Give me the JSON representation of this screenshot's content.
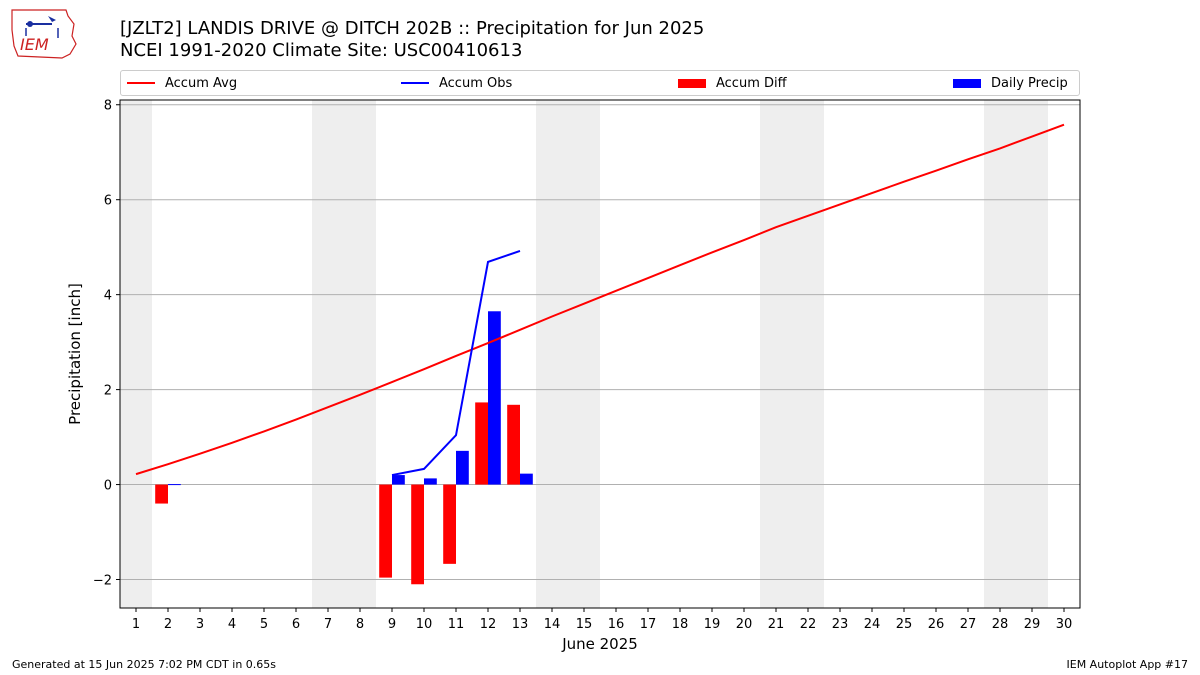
{
  "header": {
    "title_line1": "[JZLT2] LANDIS DRIVE @ DITCH 202B :: Precipitation for Jun 2025",
    "title_line2": "NCEI 1991-2020 Climate Site: USC00410613"
  },
  "logo": {
    "text": "IEM",
    "icon": "iowa-state-logo-icon"
  },
  "footer": {
    "left": "Generated at 15 Jun 2025 7:02 PM CDT in 0.65s",
    "right": "IEM Autoplot App #17"
  },
  "colors": {
    "accum_avg": "#ff0000",
    "accum_obs": "#0000ff",
    "accum_diff": "#ff0000",
    "daily_precip": "#0000ff",
    "weekend_shade": "#eeeeee",
    "grid": "#b0b0b0"
  },
  "chart_data": {
    "type": "bar",
    "xlabel": "June 2025",
    "ylabel": "Precipitation [inch]",
    "ylim": [
      -2.6,
      8.1
    ],
    "yticks": [
      -2,
      0,
      2,
      4,
      6,
      8
    ],
    "ytick_labels": [
      "−2",
      "0",
      "2",
      "4",
      "6",
      "8"
    ],
    "x": [
      1,
      2,
      3,
      4,
      5,
      6,
      7,
      8,
      9,
      10,
      11,
      12,
      13,
      14,
      15,
      16,
      17,
      18,
      19,
      20,
      21,
      22,
      23,
      24,
      25,
      26,
      27,
      28,
      29,
      30
    ],
    "weekend_days": [
      1,
      7,
      8,
      14,
      15,
      21,
      22,
      28,
      29
    ],
    "grid": "horizontal",
    "legend_position": "top",
    "legend": [
      "Accum Avg",
      "Accum Obs",
      "Accum Diff",
      "Daily Precip"
    ],
    "series": [
      {
        "name": "Accum Avg",
        "kind": "line",
        "x": [
          1,
          2,
          3,
          4,
          5,
          6,
          7,
          8,
          9,
          10,
          11,
          12,
          13,
          14,
          15,
          16,
          17,
          18,
          19,
          20,
          21,
          22,
          23,
          24,
          25,
          26,
          27,
          28,
          29,
          30
        ],
        "values": [
          0.22,
          0.43,
          0.65,
          0.88,
          1.12,
          1.37,
          1.63,
          1.89,
          2.16,
          2.43,
          2.71,
          2.98,
          3.26,
          3.54,
          3.81,
          4.08,
          4.35,
          4.62,
          4.89,
          5.15,
          5.42,
          5.66,
          5.9,
          6.14,
          6.38,
          6.61,
          6.85,
          7.08,
          7.33,
          7.58
        ]
      },
      {
        "name": "Accum Obs",
        "kind": "line",
        "x": [
          9,
          10,
          11,
          12,
          13
        ],
        "values": [
          0.2,
          0.33,
          1.04,
          4.69,
          4.92
        ]
      },
      {
        "name": "Accum Diff",
        "kind": "bar",
        "x": [
          2,
          9,
          10,
          11,
          12,
          13
        ],
        "values": [
          -0.4,
          -1.96,
          -2.1,
          -1.67,
          1.73,
          1.68
        ]
      },
      {
        "name": "Daily Precip",
        "kind": "bar",
        "x": [
          2,
          9,
          10,
          11,
          12,
          13
        ],
        "values": [
          0.01,
          0.2,
          0.13,
          0.71,
          3.65,
          0.23
        ]
      }
    ]
  }
}
